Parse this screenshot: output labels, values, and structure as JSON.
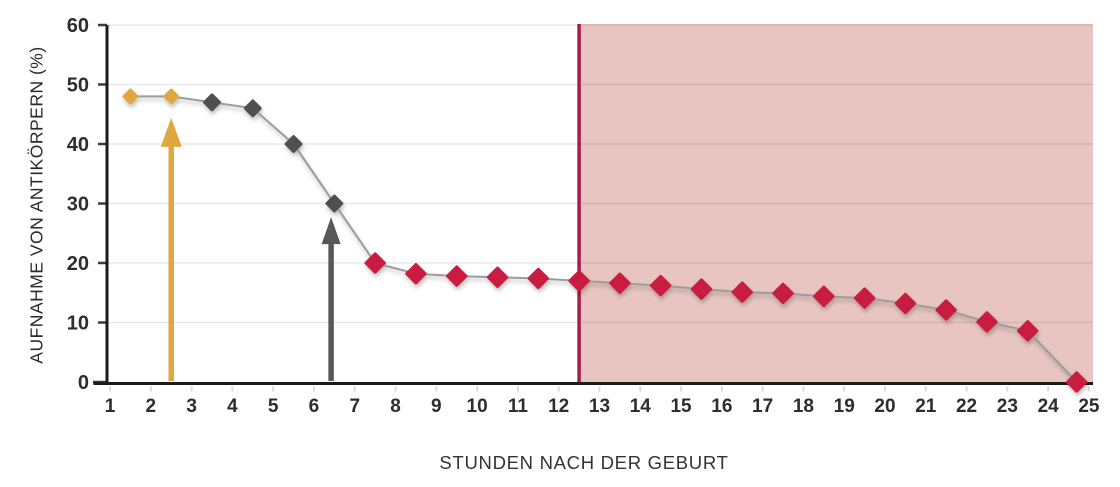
{
  "chart_data": {
    "type": "line",
    "title": "",
    "xlabel": "STUNDEN NACH DER GEBURT",
    "ylabel": "AUFNAHME VON ANTIKÖRPERN (%)",
    "xlim": [
      0.95,
      25.1
    ],
    "ylim": [
      0,
      60
    ],
    "x_ticks": [
      1,
      2,
      3,
      4,
      5,
      6,
      7,
      8,
      9,
      10,
      11,
      12,
      13,
      14,
      15,
      16,
      17,
      18,
      19,
      20,
      21,
      22,
      23,
      24,
      25
    ],
    "y_ticks": [
      0,
      10,
      20,
      30,
      40,
      50,
      60
    ],
    "grid": true,
    "legend": "none",
    "series": [
      {
        "name": "antikoerper-aufnahme",
        "line_color": "#9c9c9c",
        "points": [
          {
            "x": 1.5,
            "y": 48,
            "marker": "gold"
          },
          {
            "x": 2.5,
            "y": 48,
            "marker": "gold"
          },
          {
            "x": 3.5,
            "y": 47,
            "marker": "gray"
          },
          {
            "x": 4.5,
            "y": 46,
            "marker": "gray"
          },
          {
            "x": 5.5,
            "y": 40,
            "marker": "gray"
          },
          {
            "x": 6.5,
            "y": 30,
            "marker": "gray"
          },
          {
            "x": 7.5,
            "y": 20,
            "marker": "red"
          },
          {
            "x": 8.5,
            "y": 18.2,
            "marker": "red"
          },
          {
            "x": 9.5,
            "y": 17.8,
            "marker": "red"
          },
          {
            "x": 10.5,
            "y": 17.6,
            "marker": "red"
          },
          {
            "x": 11.5,
            "y": 17.4,
            "marker": "red"
          },
          {
            "x": 12.5,
            "y": 17,
            "marker": "red"
          },
          {
            "x": 13.5,
            "y": 16.6,
            "marker": "red"
          },
          {
            "x": 14.5,
            "y": 16.2,
            "marker": "red"
          },
          {
            "x": 15.5,
            "y": 15.6,
            "marker": "red"
          },
          {
            "x": 16.5,
            "y": 15.1,
            "marker": "red"
          },
          {
            "x": 17.5,
            "y": 14.9,
            "marker": "red"
          },
          {
            "x": 18.5,
            "y": 14.4,
            "marker": "red"
          },
          {
            "x": 19.5,
            "y": 14.1,
            "marker": "red"
          },
          {
            "x": 20.5,
            "y": 13.2,
            "marker": "red"
          },
          {
            "x": 21.5,
            "y": 12.1,
            "marker": "red"
          },
          {
            "x": 22.5,
            "y": 10.1,
            "marker": "red"
          },
          {
            "x": 23.5,
            "y": 8.6,
            "marker": "red"
          },
          {
            "x": 24.7,
            "y": 0,
            "marker": "red"
          }
        ]
      }
    ],
    "marker_colors": {
      "gold": "#dfa73d",
      "gray": "#4f4f51",
      "red": "#c81d41"
    },
    "annotations": {
      "gold_arrow": {
        "x": 2.5,
        "tip_y": 44.4,
        "color": "#dfa73d"
      },
      "gray_arrow": {
        "x": 6.42,
        "tip_y": 27.7,
        "color": "#58585a"
      },
      "cutoff_line": {
        "x": 12.5,
        "color": "#a51e48"
      },
      "shaded_region": {
        "from_x": 12.5,
        "to_x": 25.1,
        "color": "#e7c2be",
        "opacity": 0.95
      }
    },
    "axis_color": "#1b1b1b",
    "grid_color": "rgba(0,0,0,0.09)",
    "x_minor_tick_color": "#d9d9d9",
    "tick_label_color": "#2d2d2d",
    "background": "#ffffff"
  }
}
